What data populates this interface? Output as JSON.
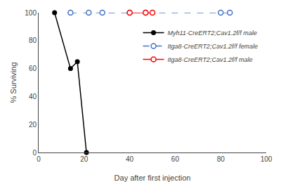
{
  "chart_data": {
    "type": "line",
    "xlabel": "Day after first injection",
    "ylabel": "% Surviving",
    "series": [
      {
        "name": "Myh11-CreERT2;Cav1.2f/f male",
        "color": "#000000",
        "marker": "circle",
        "line_style": "solid",
        "x": [
          7,
          14,
          17,
          21
        ],
        "values": [
          100,
          60,
          65,
          0
        ]
      },
      {
        "name": "Itga8-CreERT2;Cav1.2f/f female",
        "color": "#4472C4",
        "marker": "open circle",
        "line_style": "dashed",
        "x": [
          14,
          22,
          28,
          40,
          47,
          80,
          84
        ],
        "values": [
          100,
          100,
          100,
          100,
          100,
          100,
          100
        ]
      },
      {
        "name": "Itga8-CreERT2;Cav1.2f/f male",
        "color": "#FF0000",
        "marker": "open circle",
        "line_style": "solid",
        "x": [
          40,
          47,
          50
        ],
        "values": [
          100,
          100,
          100
        ]
      }
    ],
    "xlim": [
      0,
      100
    ],
    "ylim": [
      0,
      100
    ],
    "xticks": [
      0,
      20,
      40,
      60,
      80,
      100
    ],
    "yticks": [
      0,
      20,
      40,
      60,
      80,
      100
    ],
    "grid": false,
    "legend": "upper right"
  }
}
